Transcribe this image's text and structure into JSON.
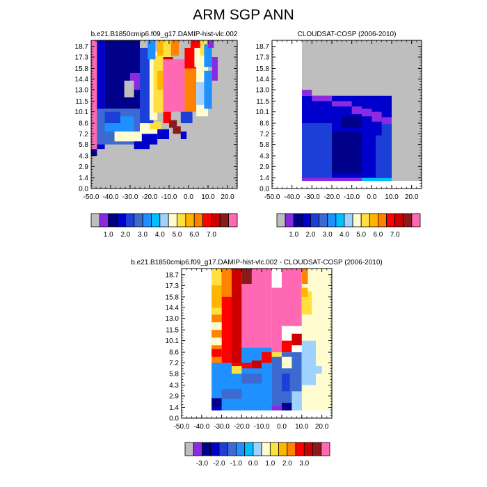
{
  "title": "ARM SGP ANN",
  "colors": {
    "missing": "#bebebe",
    "panel_fill": "#ffffff",
    "palette": [
      "#bebebe",
      "#8a2be2",
      "#00008b",
      "#0000cd",
      "#1c3fd8",
      "#3c6ad0",
      "#1e90ff",
      "#00bfff",
      "#a0d2ff",
      "#fffdd0",
      "#ffe040",
      "#ffb400",
      "#ff8200",
      "#ff0000",
      "#cd0000",
      "#8b1a1a",
      "#ff69b4"
    ]
  },
  "chart_data": [
    {
      "type": "heatmap",
      "title": "b.e21.B1850cmip6.f09_g17.DAMIP-hist-vlc.002",
      "xlim": [
        -50,
        25
      ],
      "ylim": [
        0,
        19.5
      ],
      "x_ticks": [
        "-50.0",
        "-40.0",
        "-30.0",
        "-20.0",
        "-10.0",
        "0.0",
        "10.0",
        "20.0"
      ],
      "y_ticks": [
        "0.0",
        "1.4",
        "2.9",
        "4.3",
        "5.8",
        "7.2",
        "8.6",
        "10.1",
        "11.5",
        "13.0",
        "14.4",
        "15.8",
        "17.3",
        "18.7"
      ],
      "colorbar_labels": [
        "1.0",
        "2.0",
        "3.0",
        "4.0",
        "5.0",
        "6.0",
        "7.0"
      ],
      "background": "#bebebe",
      "cells": [
        [
          -50,
          4.3,
          -47,
          5.2,
          2
        ],
        [
          -50,
          5.2,
          -47,
          19.5,
          16
        ],
        [
          -47,
          5.2,
          -43,
          19.5,
          3
        ],
        [
          -43,
          10.5,
          -25,
          19.5,
          2
        ],
        [
          -47,
          5.8,
          -25,
          10.5,
          5
        ],
        [
          -43,
          7.5,
          -28,
          9.5,
          6
        ],
        [
          -38,
          6.2,
          -20,
          7.5,
          9
        ],
        [
          -43,
          8.6,
          -35,
          10.1,
          4
        ],
        [
          -30,
          13.0,
          -20,
          15.2,
          1
        ],
        [
          -33,
          12.0,
          -28,
          14.2,
          0
        ],
        [
          -24,
          5.8,
          -16,
          7.2,
          3
        ],
        [
          -25,
          7.2,
          -15,
          8.6,
          9
        ],
        [
          -20,
          7.8,
          -14,
          8.8,
          10
        ],
        [
          -16,
          6.5,
          -10,
          7.8,
          3
        ],
        [
          -25,
          8.6,
          -18,
          18.5,
          4
        ],
        [
          -20,
          9.0,
          -16,
          18.0,
          9
        ],
        [
          -18,
          10.0,
          -13,
          17.5,
          10
        ],
        [
          -21,
          17.0,
          -17,
          19.5,
          6
        ],
        [
          -16,
          17.5,
          -13,
          19.5,
          11
        ],
        [
          -13,
          17.0,
          -9,
          19.5,
          10
        ],
        [
          -9,
          17.5,
          -5,
          19.5,
          12
        ],
        [
          -16,
          13.0,
          -13,
          15.5,
          11
        ],
        [
          -13,
          8.6,
          -9,
          10.1,
          13
        ],
        [
          -10,
          8.0,
          -6,
          9.0,
          15
        ],
        [
          -13,
          15.8,
          -8,
          17.3,
          14
        ],
        [
          -11,
          15.2,
          -6,
          16.5,
          15
        ],
        [
          -13,
          10.1,
          -2,
          17.0,
          16
        ],
        [
          -2,
          10.1,
          4,
          15.8,
          12
        ],
        [
          -2,
          15.8,
          4,
          18.5,
          13
        ],
        [
          3,
          16.0,
          9,
          19.0,
          9
        ],
        [
          4,
          9.5,
          10,
          16.0,
          9
        ],
        [
          4,
          11.0,
          8,
          14.0,
          8
        ],
        [
          1,
          18.5,
          6,
          19.5,
          13
        ],
        [
          6,
          17.5,
          10,
          19.5,
          10
        ],
        [
          8,
          10.5,
          12,
          15.5,
          6
        ],
        [
          8,
          16.0,
          12,
          19.0,
          6
        ],
        [
          10,
          18.5,
          13,
          19.5,
          1
        ],
        [
          12,
          14.2,
          15,
          17.3,
          1
        ],
        [
          -4,
          8.6,
          2,
          10.1,
          4
        ],
        [
          -8,
          7.2,
          -4,
          8.2,
          15
        ],
        [
          -4,
          6.5,
          -1,
          7.5,
          3
        ],
        [
          -28,
          5.2,
          -20,
          6.2,
          3
        ]
      ]
    },
    {
      "type": "heatmap",
      "title": "CLOUDSAT-COSP (2006-2010)",
      "xlim": [
        -50,
        25
      ],
      "ylim": [
        0,
        19.5
      ],
      "x_ticks": [
        "-50.0",
        "-40.0",
        "-30.0",
        "-20.0",
        "-10.0",
        "0.0",
        "10.0",
        "20.0"
      ],
      "y_ticks": [
        "0.0",
        "1.4",
        "2.9",
        "4.3",
        "5.8",
        "7.2",
        "8.6",
        "10.1",
        "11.5",
        "13.0",
        "14.4",
        "15.8",
        "17.3",
        "18.7"
      ],
      "colorbar_labels": [
        "1.0",
        "2.0",
        "3.0",
        "4.0",
        "5.0",
        "6.0",
        "7.0"
      ],
      "background": "#bebebe",
      "cells": [
        [
          -50,
          0,
          -35,
          19.5,
          -1
        ],
        [
          -35,
          0,
          25,
          1.0,
          -1
        ],
        [
          -35,
          1.0,
          -5,
          1.4,
          1
        ],
        [
          -5,
          1.0,
          10,
          1.4,
          7
        ],
        [
          -35,
          1.4,
          10,
          12.2,
          3
        ],
        [
          -35,
          1.4,
          -20,
          8.6,
          4
        ],
        [
          -20,
          2.0,
          -5,
          7.5,
          2
        ],
        [
          -35,
          12.2,
          -30,
          13.0,
          1
        ],
        [
          -30,
          11.5,
          -20,
          12.2,
          1
        ],
        [
          -20,
          10.8,
          -10,
          11.5,
          1
        ],
        [
          -10,
          9.8,
          -5,
          10.8,
          1
        ],
        [
          -5,
          9.5,
          0,
          10.5,
          1
        ],
        [
          0,
          8.8,
          5,
          10.1,
          1
        ],
        [
          5,
          8.0,
          10,
          9.4,
          1
        ],
        [
          2,
          1.4,
          10,
          7.0,
          4
        ],
        [
          5,
          7.0,
          10,
          8.5,
          4
        ],
        [
          -15,
          8.0,
          -5,
          9.5,
          2
        ]
      ]
    },
    {
      "type": "heatmap",
      "title": "b.e21.B1850cmip6.f09_g17.DAMIP-hist-vlc.002 - CLOUDSAT-COSP (2006-2010)",
      "xlim": [
        -50,
        25
      ],
      "ylim": [
        0,
        19.5
      ],
      "x_ticks": [
        "-50.0",
        "-40.0",
        "-30.0",
        "-20.0",
        "-10.0",
        "0.0",
        "10.0",
        "20.0"
      ],
      "y_ticks": [
        "0.0",
        "1.4",
        "2.9",
        "4.3",
        "5.8",
        "7.2",
        "8.6",
        "10.1",
        "11.5",
        "13.0",
        "14.4",
        "15.8",
        "17.3",
        "18.7"
      ],
      "colorbar_labels": [
        "-3.0",
        "-2.0",
        "-1.0",
        "0.0",
        "1.0",
        "2.0",
        "3.0"
      ],
      "background": "#ffffff",
      "cells": [
        [
          -35,
          1.0,
          -30,
          19.5,
          11
        ],
        [
          -30,
          1.0,
          -25,
          19.5,
          13
        ],
        [
          -25,
          1.0,
          -20,
          19.5,
          14
        ],
        [
          -20,
          9.2,
          -5,
          19.5,
          16
        ],
        [
          -5,
          8.6,
          0,
          17.0,
          16
        ],
        [
          0,
          12.0,
          10,
          19.5,
          16
        ],
        [
          -20,
          1.0,
          -5,
          9.2,
          6
        ],
        [
          -35,
          1.0,
          -20,
          7.2,
          6
        ],
        [
          -35,
          1.0,
          -30,
          1.4,
          3
        ],
        [
          -35,
          1.4,
          -30,
          2.6,
          2
        ],
        [
          -30,
          2.5,
          -20,
          3.8,
          5
        ],
        [
          -20,
          4.5,
          -10,
          5.8,
          5
        ],
        [
          -5,
          1.0,
          10,
          8.6,
          5
        ],
        [
          -5,
          1.0,
          0,
          1.6,
          1
        ],
        [
          0,
          3.5,
          4,
          5.8,
          4
        ],
        [
          0,
          1.0,
          5,
          2.0,
          2
        ],
        [
          5,
          1.0,
          10,
          3.5,
          8
        ],
        [
          10,
          1.0,
          25,
          19.5,
          9
        ],
        [
          10,
          4.3,
          17,
          10.1,
          8
        ],
        [
          15,
          5.8,
          20,
          6.8,
          8
        ],
        [
          10,
          13.5,
          15,
          16.5,
          10
        ],
        [
          10,
          15.8,
          13,
          17.0,
          11
        ],
        [
          10,
          17.5,
          13,
          19.5,
          12
        ],
        [
          -35,
          7.2,
          -30,
          14.4,
          12
        ],
        [
          -35,
          8.0,
          -30,
          9.0,
          13
        ],
        [
          -35,
          9.5,
          -30,
          10.5,
          9
        ],
        [
          -35,
          11.5,
          -30,
          12.5,
          9
        ],
        [
          -35,
          13.5,
          -30,
          14.4,
          10
        ],
        [
          -35,
          14.4,
          -30,
          17.3,
          11
        ],
        [
          -35,
          17.3,
          -30,
          19.5,
          10
        ],
        [
          -25,
          6.5,
          -15,
          7.2,
          13
        ],
        [
          -25,
          5.8,
          -20,
          6.8,
          10
        ],
        [
          -15,
          6.5,
          -10,
          7.5,
          14
        ],
        [
          -10,
          7.2,
          -5,
          8.6,
          13
        ],
        [
          -5,
          8.0,
          0,
          8.6,
          10
        ],
        [
          0,
          8.6,
          5,
          10.1,
          13
        ],
        [
          5,
          9.5,
          10,
          11.0,
          14
        ],
        [
          0,
          6.5,
          5,
          8.0,
          9
        ],
        [
          -30,
          15.8,
          -25,
          19.5,
          12
        ],
        [
          -20,
          17.5,
          -15,
          19.5,
          15
        ]
      ]
    }
  ]
}
